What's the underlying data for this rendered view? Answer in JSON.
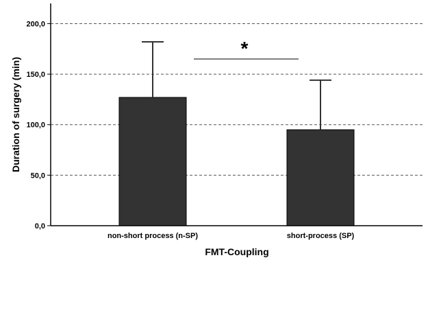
{
  "chart_data": {
    "type": "bar",
    "title": "",
    "xlabel": "FMT-Coupling",
    "ylabel": "Duration of surgery (min)",
    "categories": [
      "non-short process (n-SP)",
      "short-process (SP)"
    ],
    "values": [
      127,
      95
    ],
    "error_upper": [
      182,
      144
    ],
    "ylim": [
      0,
      220
    ],
    "yticks": [
      0,
      50,
      100,
      150,
      200
    ],
    "ytick_labels": [
      "0,0",
      "50,0",
      "100,0",
      "150,0",
      "200,0"
    ],
    "grid": "horizontal dashed",
    "bar_color": "#333333",
    "significance": {
      "label": "*",
      "between": [
        0,
        1
      ]
    }
  }
}
